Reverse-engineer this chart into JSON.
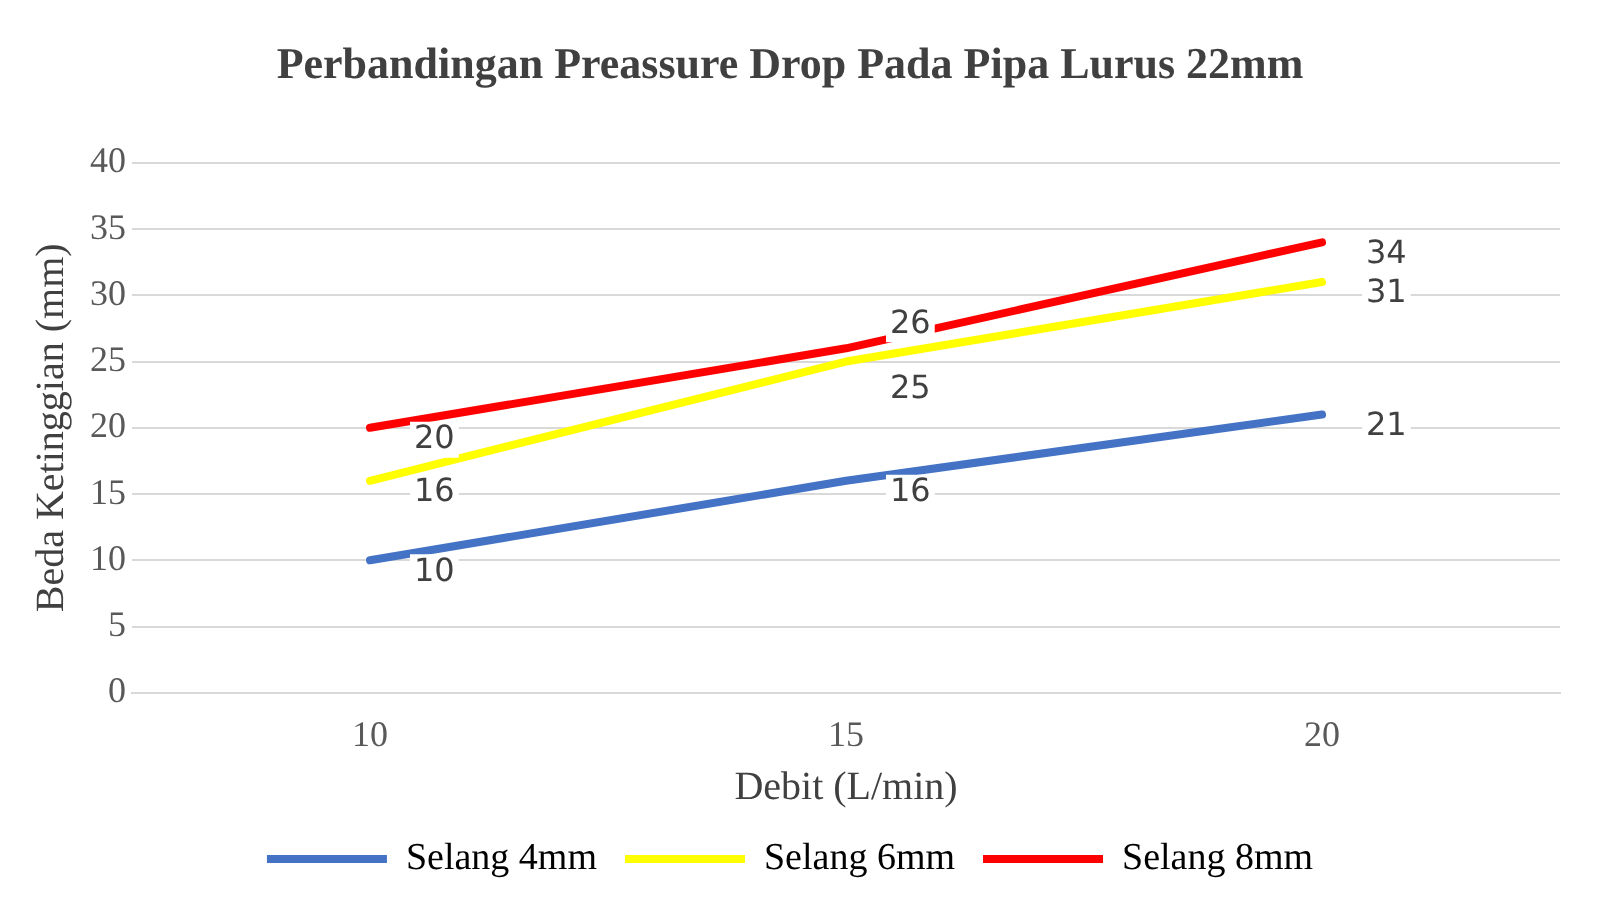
{
  "chart_data": {
    "type": "line",
    "title": "Perbandingan Preassure Drop Pada Pipa Lurus 22mm",
    "xlabel": "Debit (L/min)",
    "ylabel": "Beda Ketinggian (mm)",
    "categories": [
      "10",
      "15",
      "20"
    ],
    "series": [
      {
        "name": "Selang 4mm",
        "color": "#4472c4",
        "values": [
          10,
          16,
          21
        ]
      },
      {
        "name": "Selang 6mm",
        "color": "#ffff00",
        "values": [
          16,
          25,
          31
        ]
      },
      {
        "name": "Selang 8mm",
        "color": "#ff0000",
        "values": [
          20,
          26,
          34
        ]
      }
    ],
    "ylim": [
      0,
      40
    ],
    "yticks": [
      0,
      5,
      10,
      15,
      20,
      25,
      30,
      35,
      40
    ],
    "grid": "y",
    "legend": "bottom",
    "data_labels": true,
    "marker": "none",
    "line_style": "solid"
  }
}
